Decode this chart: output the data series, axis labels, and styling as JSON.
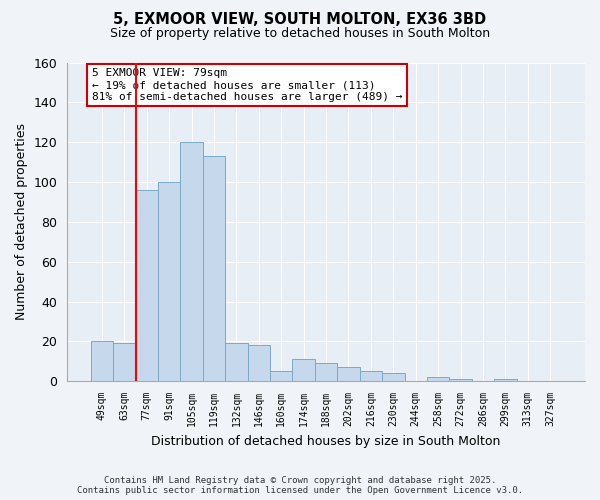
{
  "title": "5, EXMOOR VIEW, SOUTH MOLTON, EX36 3BD",
  "subtitle": "Size of property relative to detached houses in South Molton",
  "xlabel": "Distribution of detached houses by size in South Molton",
  "ylabel": "Number of detached properties",
  "bar_labels": [
    "49sqm",
    "63sqm",
    "77sqm",
    "91sqm",
    "105sqm",
    "119sqm",
    "132sqm",
    "146sqm",
    "160sqm",
    "174sqm",
    "188sqm",
    "202sqm",
    "216sqm",
    "230sqm",
    "244sqm",
    "258sqm",
    "272sqm",
    "286sqm",
    "299sqm",
    "313sqm",
    "327sqm"
  ],
  "bar_values": [
    20,
    19,
    96,
    100,
    120,
    113,
    19,
    18,
    5,
    11,
    9,
    7,
    5,
    4,
    0,
    2,
    1,
    0,
    1,
    0,
    0
  ],
  "bar_color": "#c5d8ec",
  "bar_edge_color": "#7aaac8",
  "reference_line_idx": 2,
  "annotation_title": "5 EXMOOR VIEW: 79sqm",
  "annotation_line1": "← 19% of detached houses are smaller (113)",
  "annotation_line2": "81% of semi-detached houses are larger (489) →",
  "annotation_box_color": "#ffffff",
  "annotation_box_edge_color": "#cc0000",
  "ylim": [
    0,
    160
  ],
  "yticks": [
    0,
    20,
    40,
    60,
    80,
    100,
    120,
    140,
    160
  ],
  "plot_bg_color": "#e8eef5",
  "fig_bg_color": "#f0f4f8",
  "grid_color": "#ffffff",
  "footer_line1": "Contains HM Land Registry data © Crown copyright and database right 2025.",
  "footer_line2": "Contains public sector information licensed under the Open Government Licence v3.0."
}
